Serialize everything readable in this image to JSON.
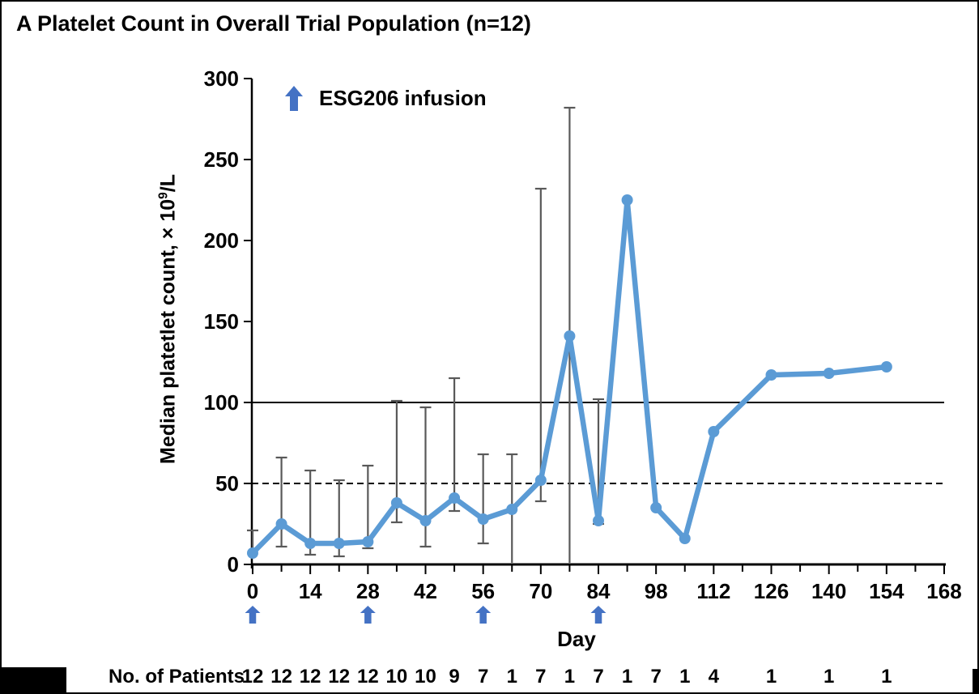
{
  "title": "A Platelet Count in Overall Trial Population (n=12)",
  "legend": {
    "label": "ESG206 infusion"
  },
  "colors": {
    "line": "#5B9BD5",
    "marker": "#5B9BD5",
    "infusion_arrow": "#4472C4",
    "error_bar": "#595959",
    "reference_line": "#000000",
    "axis": "#000000",
    "text": "#000000"
  },
  "chart_data": {
    "type": "line",
    "title": "A Platelet Count in Overall Trial Population (n=12)",
    "xlabel": "Day",
    "ylabel": "Median platetlet count, × 10⁹/L",
    "ylabel_parts": {
      "prefix": "Median platetlet count, × 10",
      "sup": "9",
      "suffix": "/L"
    },
    "xlim": [
      0,
      168
    ],
    "ylim": [
      0,
      300
    ],
    "x_major_tick_labels": [
      0,
      14,
      28,
      42,
      56,
      70,
      84,
      98,
      112,
      126,
      140,
      154,
      168
    ],
    "x_minor_tick_step": 7,
    "y_tick_labels": [
      0,
      50,
      100,
      150,
      200,
      250,
      300
    ],
    "grid": false,
    "legend_position": "top-left-inside",
    "reference_lines": [
      {
        "y": 100,
        "style": "solid"
      },
      {
        "y": 50,
        "style": "dashed"
      }
    ],
    "infusion_days": [
      0,
      28,
      56,
      84
    ],
    "series": [
      {
        "name": "Median platelet count",
        "x": [
          0,
          7,
          14,
          21,
          28,
          35,
          42,
          49,
          56,
          63,
          70,
          77,
          84,
          91,
          98,
          105,
          112,
          126,
          140,
          154
        ],
        "y": [
          7,
          25,
          13,
          13,
          14,
          38,
          27,
          41,
          28,
          34,
          52,
          141,
          27,
          225,
          35,
          16,
          82,
          117,
          118,
          122
        ],
        "err_low": [
          null,
          11,
          6,
          5,
          10,
          26,
          11,
          33,
          13,
          1,
          39,
          1,
          25,
          null,
          null,
          null,
          null,
          null,
          null,
          null
        ],
        "err_high": [
          21,
          66,
          58,
          52,
          61,
          101,
          97,
          115,
          68,
          68,
          232,
          282,
          102,
          null,
          null,
          null,
          null,
          null,
          null,
          null
        ]
      }
    ]
  },
  "patients_row": {
    "label": "No. of Patients",
    "days": [
      0,
      7,
      14,
      21,
      28,
      35,
      42,
      49,
      56,
      63,
      70,
      77,
      84,
      91,
      98,
      105,
      112,
      126,
      140,
      154
    ],
    "counts": [
      12,
      12,
      12,
      12,
      12,
      10,
      10,
      9,
      7,
      1,
      7,
      1,
      7,
      1,
      7,
      1,
      4,
      1,
      1,
      1
    ]
  }
}
